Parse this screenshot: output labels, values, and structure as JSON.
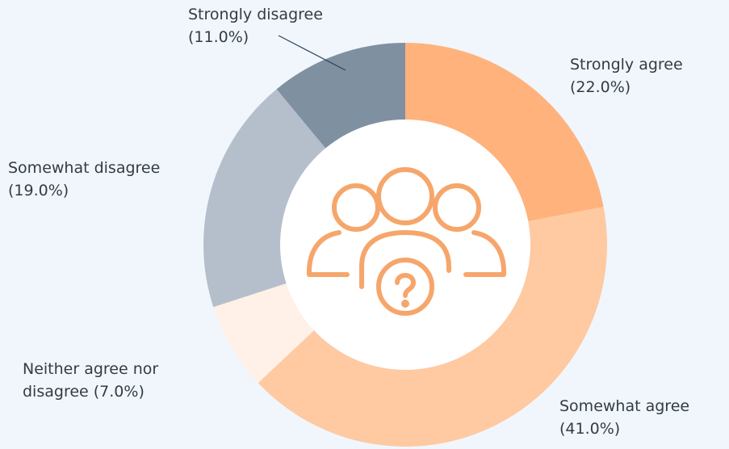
{
  "chart_data": {
    "type": "donut",
    "categories": [
      "Strongly agree",
      "Somewhat agree",
      "Neither agree nor disagree",
      "Somewhat disagree",
      "Strongly disagree"
    ],
    "values": [
      22,
      41,
      7,
      19,
      11
    ],
    "value_labels": [
      "(22.0%)",
      "(41.0%)",
      "(7.0%)",
      "(19.0%)",
      "(11.0%)"
    ],
    "colors": [
      "#ffb27c",
      "#ffc9a1",
      "#fff1e7",
      "#b5bfcc",
      "#7f90a1"
    ]
  }
}
